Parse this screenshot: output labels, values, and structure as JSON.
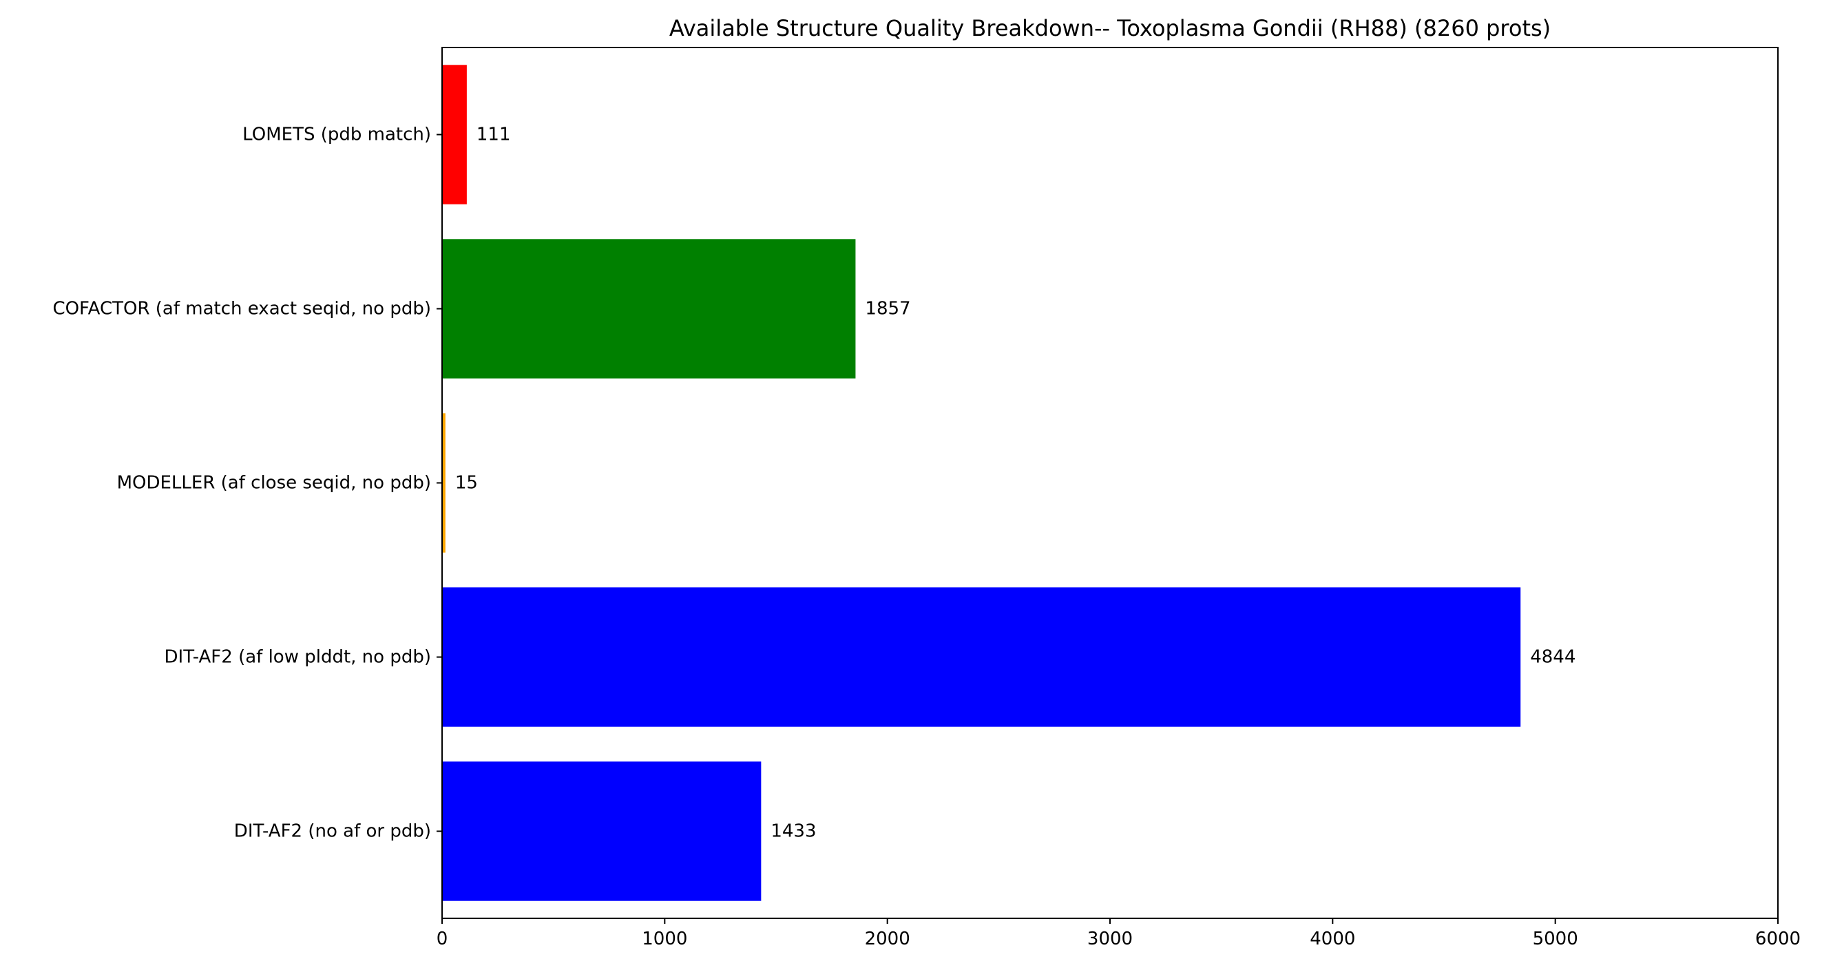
{
  "chart_data": {
    "type": "bar",
    "orientation": "horizontal",
    "title": "Available Structure Quality Breakdown-- Toxoplasma Gondii (RH88) (8260 prots)",
    "xlabel": "",
    "ylabel": "",
    "xlim": [
      0,
      6000
    ],
    "xticks": [
      0,
      1000,
      2000,
      3000,
      4000,
      5000,
      6000
    ],
    "grid": false,
    "categories": [
      "LOMETS (pdb match)",
      "COFACTOR (af match exact seqid, no pdb)",
      "MODELLER (af close seqid, no pdb)",
      "DIT-AF2 (af low plddt, no pdb)",
      "DIT-AF2 (no af or pdb)"
    ],
    "values": [
      111,
      1857,
      15,
      4844,
      1433
    ],
    "value_labels": [
      "111",
      "1857",
      "15",
      "4844",
      "1433"
    ],
    "colors": [
      "#ff0000",
      "#008000",
      "#ffa500",
      "#0000ff",
      "#0000ff"
    ]
  }
}
